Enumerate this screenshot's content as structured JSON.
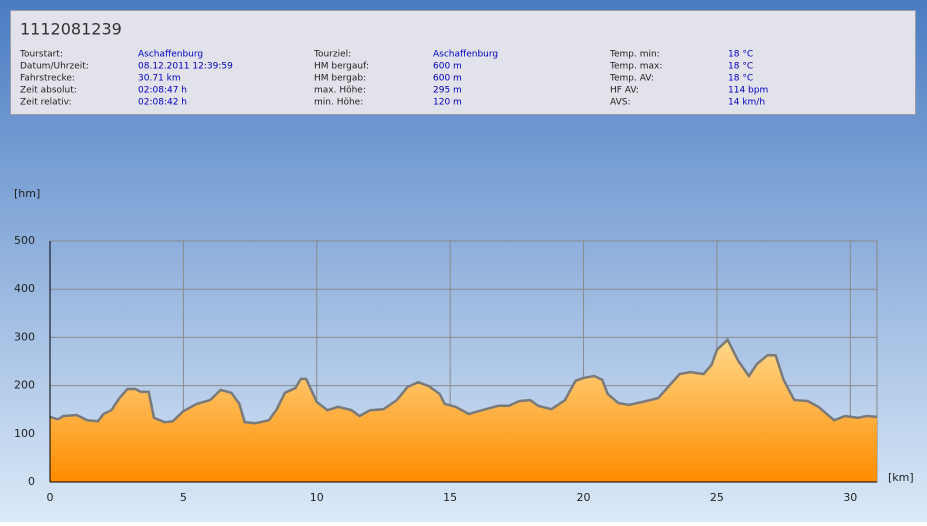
{
  "header": {
    "title": "1112081239",
    "columns": [
      [
        {
          "label": "Tourstart:",
          "value": "Aschaffenburg"
        },
        {
          "label": "Datum/Uhrzeit:",
          "value": "08.12.2011 12:39:59"
        },
        {
          "label": "Fahrstrecke:",
          "value": "30.71 km"
        },
        {
          "label": "Zeit absolut:",
          "value": "02:08:47 h"
        },
        {
          "label": "Zeit relativ:",
          "value": "02:08:42 h"
        }
      ],
      [
        {
          "label": "Tourziel:",
          "value": "Aschaffenburg"
        },
        {
          "label": "HM bergauf:",
          "value": "600 m"
        },
        {
          "label": "HM bergab:",
          "value": "600 m"
        },
        {
          "label": "max. Höhe:",
          "value": "295 m"
        },
        {
          "label": "min. Höhe:",
          "value": "120 m"
        }
      ],
      [
        {
          "label": "Temp. min:",
          "value": "18 °C"
        },
        {
          "label": "Temp. max:",
          "value": "18 °C"
        },
        {
          "label": "Temp. AV:",
          "value": "18 °C"
        },
        {
          "label": "HF AV:",
          "value": "114 bpm"
        },
        {
          "label": "AVS:",
          "value": "14 km/h"
        }
      ]
    ]
  },
  "chart_data": {
    "type": "area",
    "y_label": "[hm]",
    "x_label": "[km]",
    "x": [
      0,
      0.3,
      0.5,
      1.0,
      1.4,
      1.8,
      2.0,
      2.3,
      2.6,
      2.9,
      3.2,
      3.4,
      3.7,
      3.9,
      4.3,
      4.6,
      5.0,
      5.5,
      6.0,
      6.4,
      6.8,
      7.1,
      7.3,
      7.7,
      8.2,
      8.5,
      8.8,
      9.2,
      9.4,
      9.6,
      10.0,
      10.4,
      10.8,
      11.3,
      11.6,
      12.0,
      12.5,
      13.0,
      13.4,
      13.8,
      14.2,
      14.6,
      14.8,
      15.2,
      15.7,
      16.2,
      16.8,
      17.2,
      17.6,
      18.0,
      18.3,
      18.8,
      19.3,
      19.7,
      20.0,
      20.4,
      20.7,
      20.9,
      21.3,
      21.7,
      22.2,
      22.8,
      23.2,
      23.6,
      24.0,
      24.5,
      24.8,
      25.0,
      25.4,
      25.8,
      26.2,
      26.5,
      26.9,
      27.2,
      27.5,
      27.9,
      28.4,
      28.8,
      29.4,
      29.8,
      30.3,
      30.6,
      31.0
    ],
    "values": [
      135,
      130,
      137,
      139,
      128,
      126,
      141,
      149,
      174,
      193,
      193,
      187,
      187,
      133,
      124,
      126,
      147,
      162,
      170,
      191,
      185,
      162,
      124,
      122,
      128,
      151,
      185,
      195,
      214,
      214,
      166,
      149,
      156,
      149,
      137,
      149,
      151,
      170,
      197,
      207,
      199,
      183,
      162,
      156,
      141,
      149,
      158,
      158,
      168,
      170,
      158,
      151,
      170,
      210,
      216,
      220,
      212,
      183,
      164,
      160,
      166,
      174,
      199,
      224,
      228,
      224,
      243,
      274,
      295,
      251,
      220,
      245,
      263,
      263,
      212,
      170,
      168,
      156,
      128,
      137,
      133,
      137,
      135
    ],
    "xlim": [
      0,
      31
    ],
    "ylim": [
      0,
      500
    ],
    "xticks": [
      0,
      5,
      10,
      15,
      20,
      25,
      30
    ],
    "yticks": [
      0,
      100,
      200,
      300,
      400,
      500
    ],
    "grid": true,
    "color": "#ff9a1a",
    "line_color": "#7a7a7a"
  }
}
